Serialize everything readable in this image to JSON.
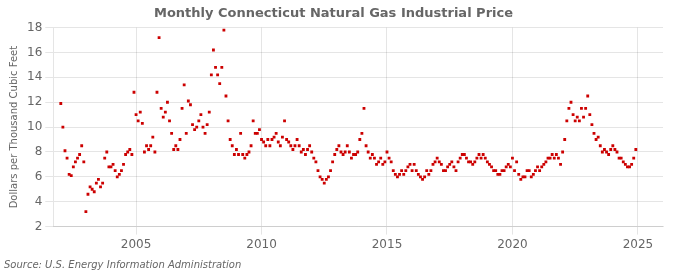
{
  "chart_data": {
    "type": "scatter",
    "title": "Monthly Connecticut Natural Gas Industrial Price",
    "ylabel": "Dollars per Thousand Cubic Feet",
    "source": "Source: U.S. Energy Information Administration",
    "color": "#cc0000",
    "marker": "square",
    "grid": true,
    "ylim": [
      2,
      18
    ],
    "yticks": [
      2,
      4,
      6,
      8,
      10,
      12,
      14,
      16,
      18
    ],
    "xlim": [
      2001.7,
      2026.0
    ],
    "xticks": [
      2005,
      2010,
      2015,
      2020,
      2025
    ],
    "x": [
      2002.0,
      2002.083,
      2002.167,
      2002.25,
      2002.333,
      2002.417,
      2002.5,
      2002.583,
      2002.667,
      2002.75,
      2002.833,
      2002.917,
      2003.0,
      2003.083,
      2003.167,
      2003.25,
      2003.333,
      2003.417,
      2003.5,
      2003.583,
      2003.667,
      2003.75,
      2003.833,
      2003.917,
      2004.0,
      2004.083,
      2004.167,
      2004.25,
      2004.333,
      2004.417,
      2004.5,
      2004.583,
      2004.667,
      2004.75,
      2004.833,
      2004.917,
      2005.0,
      2005.083,
      2005.167,
      2005.25,
      2005.333,
      2005.417,
      2005.5,
      2005.583,
      2005.667,
      2005.75,
      2005.833,
      2005.917,
      2006.0,
      2006.083,
      2006.167,
      2006.25,
      2006.333,
      2006.417,
      2006.5,
      2006.583,
      2006.667,
      2006.75,
      2006.833,
      2006.917,
      2007.0,
      2007.083,
      2007.167,
      2007.25,
      2007.333,
      2007.417,
      2007.5,
      2007.583,
      2007.667,
      2007.75,
      2007.833,
      2007.917,
      2008.0,
      2008.083,
      2008.167,
      2008.25,
      2008.333,
      2008.417,
      2008.5,
      2008.583,
      2008.667,
      2008.75,
      2008.833,
      2008.917,
      2009.0,
      2009.083,
      2009.167,
      2009.25,
      2009.333,
      2009.417,
      2009.5,
      2009.583,
      2009.667,
      2009.75,
      2009.833,
      2009.917,
      2010.0,
      2010.083,
      2010.167,
      2010.25,
      2010.333,
      2010.417,
      2010.5,
      2010.583,
      2010.667,
      2010.75,
      2010.833,
      2010.917,
      2011.0,
      2011.083,
      2011.167,
      2011.25,
      2011.333,
      2011.417,
      2011.5,
      2011.583,
      2011.667,
      2011.75,
      2011.833,
      2011.917,
      2012.0,
      2012.083,
      2012.167,
      2012.25,
      2012.333,
      2012.417,
      2012.5,
      2012.583,
      2012.667,
      2012.75,
      2012.833,
      2012.917,
      2013.0,
      2013.083,
      2013.167,
      2013.25,
      2013.333,
      2013.417,
      2013.5,
      2013.583,
      2013.667,
      2013.75,
      2013.833,
      2013.917,
      2014.0,
      2014.083,
      2014.167,
      2014.25,
      2014.333,
      2014.417,
      2014.5,
      2014.583,
      2014.667,
      2014.75,
      2014.833,
      2014.917,
      2015.0,
      2015.083,
      2015.167,
      2015.25,
      2015.333,
      2015.417,
      2015.5,
      2015.583,
      2015.667,
      2015.75,
      2015.833,
      2015.917,
      2016.0,
      2016.083,
      2016.167,
      2016.25,
      2016.333,
      2016.417,
      2016.5,
      2016.583,
      2016.667,
      2016.75,
      2016.833,
      2016.917,
      2017.0,
      2017.083,
      2017.167,
      2017.25,
      2017.333,
      2017.417,
      2017.5,
      2017.583,
      2017.667,
      2017.75,
      2017.833,
      2017.917,
      2018.0,
      2018.083,
      2018.167,
      2018.25,
      2018.333,
      2018.417,
      2018.5,
      2018.583,
      2018.667,
      2018.75,
      2018.833,
      2018.917,
      2019.0,
      2019.083,
      2019.167,
      2019.25,
      2019.333,
      2019.417,
      2019.5,
      2019.583,
      2019.667,
      2019.75,
      2019.833,
      2019.917,
      2020.0,
      2020.083,
      2020.167,
      2020.25,
      2020.333,
      2020.417,
      2020.5,
      2020.583,
      2020.667,
      2020.75,
      2020.833,
      2020.917,
      2021.0,
      2021.083,
      2021.167,
      2021.25,
      2021.333,
      2021.417,
      2021.5,
      2021.583,
      2021.667,
      2021.75,
      2021.833,
      2021.917,
      2022.0,
      2022.083,
      2022.167,
      2022.25,
      2022.333,
      2022.417,
      2022.5,
      2022.583,
      2022.667,
      2022.75,
      2022.833,
      2022.917,
      2023.0,
      2023.083,
      2023.167,
      2023.25,
      2023.333,
      2023.417,
      2023.5,
      2023.583,
      2023.667,
      2023.75,
      2023.833,
      2023.917,
      2024.0,
      2024.083,
      2024.167,
      2024.25,
      2024.333,
      2024.417,
      2024.5,
      2024.583,
      2024.667,
      2024.75,
      2024.833,
      2024.917
    ],
    "values": [
      11.9,
      10.0,
      8.1,
      7.5,
      6.2,
      6.1,
      6.8,
      7.2,
      7.5,
      7.8,
      8.5,
      7.2,
      3.2,
      4.6,
      5.2,
      5.0,
      4.8,
      5.5,
      5.8,
      5.2,
      5.5,
      7.5,
      8.0,
      6.8,
      6.8,
      7.0,
      6.5,
      6.0,
      6.2,
      6.5,
      7.0,
      7.8,
      8.0,
      8.2,
      7.8,
      12.8,
      11.0,
      10.5,
      11.2,
      10.3,
      8.0,
      8.5,
      8.2,
      8.5,
      9.2,
      8.0,
      12.8,
      17.2,
      11.5,
      10.8,
      11.2,
      12.0,
      10.5,
      9.5,
      8.2,
      8.5,
      8.2,
      9.0,
      11.5,
      13.4,
      9.5,
      12.1,
      11.8,
      10.2,
      9.8,
      10.0,
      10.5,
      11.0,
      10.0,
      9.5,
      10.2,
      11.2,
      14.2,
      16.2,
      14.8,
      14.2,
      13.5,
      14.8,
      17.8,
      12.5,
      10.5,
      9.0,
      8.5,
      7.8,
      8.2,
      7.8,
      9.5,
      7.8,
      7.5,
      7.8,
      8.0,
      8.5,
      10.5,
      9.5,
      9.5,
      9.8,
      9.0,
      8.8,
      8.5,
      9.0,
      8.5,
      9.0,
      9.2,
      9.5,
      8.8,
      8.5,
      9.2,
      10.5,
      9.0,
      8.8,
      8.5,
      8.2,
      8.5,
      9.0,
      8.5,
      8.0,
      8.2,
      7.8,
      8.2,
      8.5,
      8.0,
      7.5,
      7.2,
      6.5,
      6.0,
      5.8,
      5.5,
      5.8,
      6.0,
      6.5,
      7.2,
      7.8,
      8.2,
      8.5,
      8.0,
      7.8,
      8.0,
      8.5,
      8.0,
      7.5,
      7.8,
      7.8,
      8.0,
      9.0,
      9.5,
      11.5,
      8.5,
      8.0,
      7.5,
      7.8,
      7.5,
      7.0,
      7.2,
      7.5,
      7.0,
      7.2,
      8.0,
      7.5,
      7.2,
      6.5,
      6.2,
      6.0,
      6.2,
      6.5,
      6.2,
      6.5,
      6.8,
      7.0,
      6.5,
      7.0,
      6.5,
      6.2,
      6.0,
      5.8,
      6.0,
      6.5,
      6.2,
      6.5,
      7.0,
      7.2,
      7.5,
      7.2,
      7.0,
      6.5,
      6.5,
      6.8,
      7.0,
      7.2,
      6.8,
      6.5,
      7.2,
      7.5,
      7.8,
      7.8,
      7.5,
      7.2,
      7.2,
      7.0,
      7.2,
      7.5,
      7.8,
      7.5,
      7.8,
      7.5,
      7.2,
      7.0,
      6.8,
      6.5,
      6.5,
      6.2,
      6.2,
      6.5,
      6.5,
      6.8,
      7.0,
      6.8,
      7.5,
      6.5,
      7.2,
      6.2,
      5.8,
      6.0,
      6.0,
      6.5,
      6.5,
      6.0,
      6.2,
      6.5,
      6.8,
      6.5,
      6.8,
      7.0,
      7.2,
      7.5,
      7.5,
      7.8,
      7.5,
      7.8,
      7.5,
      7.0,
      8.0,
      9.0,
      10.5,
      11.5,
      12.0,
      11.0,
      10.5,
      10.8,
      10.5,
      11.5,
      10.8,
      11.5,
      12.5,
      11.0,
      10.2,
      9.5,
      9.0,
      9.2,
      8.5,
      8.0,
      8.2,
      8.0,
      7.8,
      8.2,
      8.5,
      8.2,
      8.0,
      7.5,
      7.5,
      7.2,
      7.0,
      6.8,
      6.8,
      7.0,
      7.5,
      8.2
    ]
  }
}
